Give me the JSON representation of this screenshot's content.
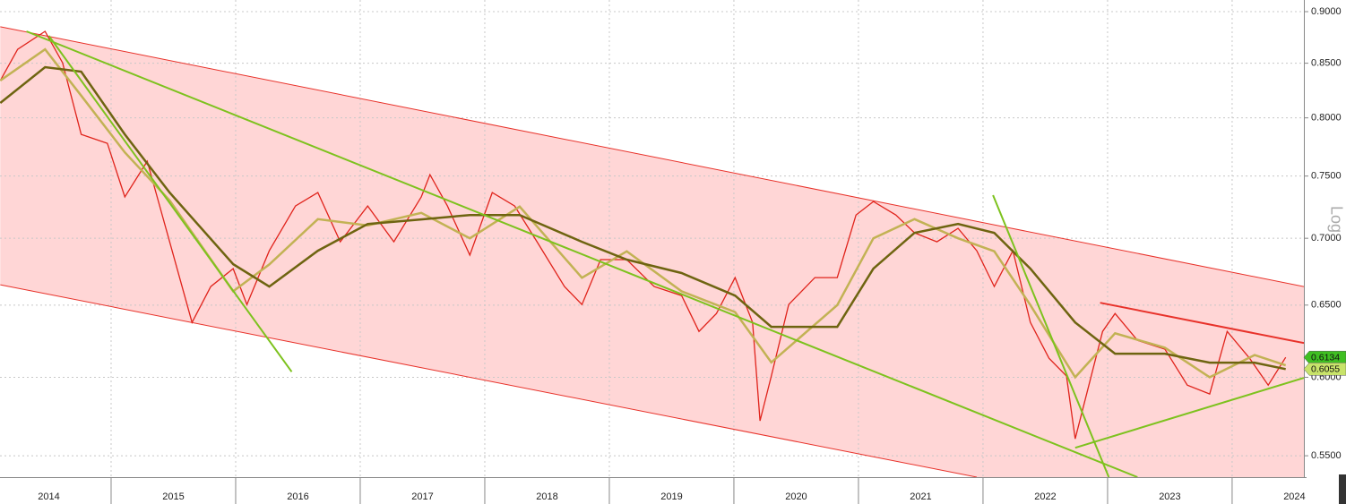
{
  "chart_data": {
    "type": "line",
    "log_scale": true,
    "grid": true,
    "scale_label": "Log",
    "xlim": [
      2014.108,
      2024.576
    ],
    "ylim": [
      0.5371,
      0.9117
    ],
    "xticks": [
      {
        "value": 2014.5,
        "label": "2014"
      },
      {
        "value": 2015.5,
        "label": "2015"
      },
      {
        "value": 2016.5,
        "label": "2016"
      },
      {
        "value": 2017.5,
        "label": "2017"
      },
      {
        "value": 2018.5,
        "label": "2018"
      },
      {
        "value": 2019.5,
        "label": "2019"
      },
      {
        "value": 2020.5,
        "label": "2020"
      },
      {
        "value": 2021.5,
        "label": "2021"
      },
      {
        "value": 2022.5,
        "label": "2022"
      },
      {
        "value": 2023.5,
        "label": "2023"
      },
      {
        "value": 2024.5,
        "label": "2024"
      }
    ],
    "yticks": [
      {
        "value": 0.9,
        "label": "0.9000"
      },
      {
        "value": 0.85,
        "label": "0.8500"
      },
      {
        "value": 0.8,
        "label": "0.8000"
      },
      {
        "value": 0.75,
        "label": "0.7500"
      },
      {
        "value": 0.7,
        "label": "0.7000"
      },
      {
        "value": 0.65,
        "label": "0.6500"
      },
      {
        "value": 0.6,
        "label": "0.6000"
      },
      {
        "value": 0.55,
        "label": "0.5500"
      }
    ],
    "series": [
      {
        "color": "#e0231b",
        "end_label": true,
        "label_color": "#3fbf22",
        "x": [
          2014.11,
          2014.25,
          2014.47,
          2014.61,
          2014.76,
          2014.97,
          2015.11,
          2015.29,
          2015.47,
          2015.65,
          2015.8,
          2015.98,
          2016.09,
          2016.27,
          2016.48,
          2016.66,
          2016.84,
          2017.06,
          2017.27,
          2017.49,
          2017.56,
          2017.7,
          2017.88,
          2018.06,
          2018.24,
          2018.42,
          2018.64,
          2018.78,
          2018.93,
          2019.14,
          2019.36,
          2019.58,
          2019.72,
          2019.86,
          2020.01,
          2020.15,
          2020.21,
          2020.3,
          2020.44,
          2020.65,
          2020.83,
          2020.98,
          2021.12,
          2021.3,
          2021.45,
          2021.63,
          2021.8,
          2021.95,
          2022.09,
          2022.24,
          2022.38,
          2022.53,
          2022.67,
          2022.74,
          2022.85,
          2022.96,
          2023.06,
          2023.24,
          2023.46,
          2023.64,
          2023.82,
          2023.96,
          2024.14,
          2024.29,
          2024.43
        ],
        "values": [
          0.8338,
          0.8632,
          0.8806,
          0.8504,
          0.7855,
          0.7777,
          0.7328,
          0.7624,
          0.6973,
          0.6376,
          0.6635,
          0.6768,
          0.6504,
          0.6904,
          0.7255,
          0.7364,
          0.6973,
          0.7255,
          0.6973,
          0.7328,
          0.7512,
          0.7255,
          0.687,
          0.7364,
          0.7255,
          0.6973,
          0.6635,
          0.6504,
          0.6836,
          0.6836,
          0.6635,
          0.6569,
          0.6313,
          0.644,
          0.6701,
          0.6376,
          0.5717,
          0.6008,
          0.6504,
          0.6701,
          0.6701,
          0.7183,
          0.7291,
          0.7183,
          0.7042,
          0.6973,
          0.7077,
          0.6904,
          0.6635,
          0.6904,
          0.6376,
          0.6128,
          0.6008,
          0.5604,
          0.5948,
          0.6313,
          0.644,
          0.6251,
          0.619,
          0.5948,
          0.589,
          0.6313,
          0.6128,
          0.5948,
          0.6134
        ]
      },
      {
        "color": "#c2b254",
        "x": [
          2014.11,
          2014.47,
          2014.76,
          2015.11,
          2015.47,
          2015.98,
          2016.27,
          2016.66,
          2017.06,
          2017.49,
          2017.88,
          2018.28,
          2018.78,
          2019.14,
          2019.58,
          2020.01,
          2020.3,
          2020.83,
          2021.12,
          2021.45,
          2021.8,
          2022.09,
          2022.38,
          2022.74,
          2023.06,
          2023.46,
          2023.82,
          2024.18,
          2024.43
        ],
        "values": [
          0.8338,
          0.8632,
          0.82,
          0.77,
          0.73,
          0.66,
          0.68,
          0.715,
          0.71,
          0.72,
          0.7,
          0.725,
          0.67,
          0.69,
          0.66,
          0.645,
          0.61,
          0.65,
          0.7,
          0.715,
          0.7,
          0.69,
          0.65,
          0.6,
          0.63,
          0.62,
          0.6,
          0.615,
          0.608
        ]
      },
      {
        "color": "#6e6410",
        "end_label": true,
        "label_color": "#c8e36a",
        "x": [
          2014.11,
          2014.47,
          2014.76,
          2015.11,
          2015.47,
          2015.98,
          2016.27,
          2016.66,
          2017.06,
          2017.49,
          2017.88,
          2018.28,
          2018.78,
          2019.14,
          2019.58,
          2020.01,
          2020.3,
          2020.83,
          2021.12,
          2021.45,
          2021.8,
          2022.09,
          2022.38,
          2022.74,
          2023.06,
          2023.46,
          2023.82,
          2024.18,
          2024.43
        ],
        "values": [
          0.8133,
          0.8463,
          0.8421,
          0.7855,
          0.7364,
          0.6802,
          0.6635,
          0.6904,
          0.7112,
          0.7148,
          0.7183,
          0.7183,
          0.6973,
          0.6836,
          0.6735,
          0.6569,
          0.6345,
          0.6345,
          0.6768,
          0.7042,
          0.7112,
          0.7042,
          0.6768,
          0.6376,
          0.6159,
          0.6159,
          0.6098,
          0.6098,
          0.6055
        ]
      }
    ],
    "channel": {
      "color": "#e8322a",
      "fill": "#ffd6d6",
      "upper": {
        "x": [
          2014.11,
          2024.576
        ],
        "values": [
          0.885,
          0.6635
        ]
      },
      "lower": {
        "x": [
          2014.11,
          2021.95
        ],
        "values": [
          0.6648,
          0.5371
        ]
      }
    },
    "trendlines": [
      {
        "color": "#7dc21e",
        "x": [
          2014.32,
          2023.24
        ],
        "values": [
          0.8806,
          0.5371
        ]
      },
      {
        "color": "#7dc21e",
        "x": [
          2014.5,
          2016.45
        ],
        "values": [
          0.8762,
          0.6037
        ]
      },
      {
        "color": "#7dc21e",
        "x": [
          2022.08,
          2023.01
        ],
        "values": [
          0.7343,
          0.5371
        ]
      },
      {
        "color": "#7dc21e",
        "x": [
          2022.74,
          2024.576
        ],
        "values": [
          0.5549,
          0.5996
        ]
      },
      {
        "color": "#e8322a",
        "x": [
          2022.94,
          2024.576
        ],
        "values": [
          0.6517,
          0.6232
        ]
      }
    ]
  }
}
